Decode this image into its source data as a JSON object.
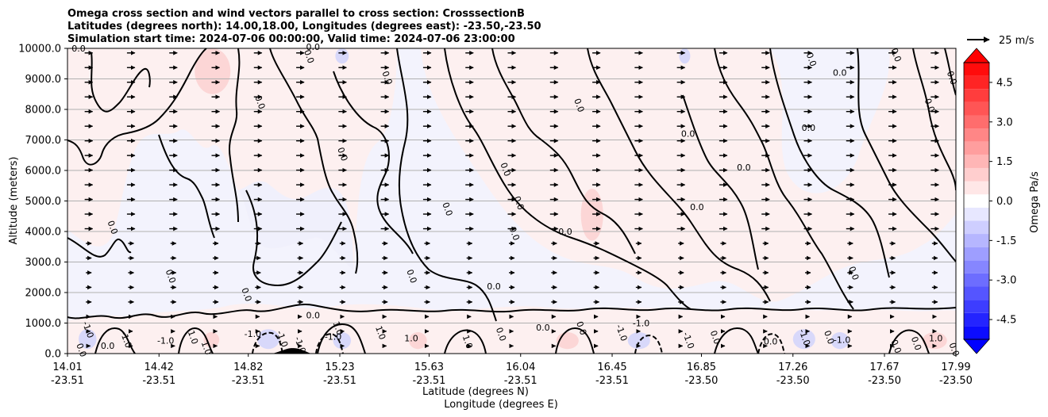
{
  "chart_data": {
    "type": "heatmap",
    "title": [
      "Omega cross section and wind vectors parallel to cross section: CrosssectionB",
      "Latitudes (degrees north): 14.00,18.00, Longitudes (degrees east): -23.50,-23.50",
      "Simulation start time: 2024-07-06 00:00:00, Valid time: 2024-07-06 23:00:00"
    ],
    "ylabel": "Altitude (meters)",
    "xlabel": [
      "Latitude (degrees N)",
      "Longitude (degrees E)"
    ],
    "ylim": [
      0,
      10000
    ],
    "yticks": [
      "0.0",
      "1000.0",
      "2000.0",
      "3000.0",
      "4000.0",
      "5000.0",
      "6000.0",
      "7000.0",
      "8000.0",
      "9000.0",
      "10000.0"
    ],
    "xlim": [
      14.01,
      17.99
    ],
    "xticks": [
      {
        "lat": "14.01",
        "lon": "-23.51",
        "x": 14.01
      },
      {
        "lat": "14.42",
        "lon": "-23.51",
        "x": 14.42
      },
      {
        "lat": "14.82",
        "lon": "-23.51",
        "x": 14.82
      },
      {
        "lat": "15.23",
        "lon": "-23.51",
        "x": 15.23
      },
      {
        "lat": "15.63",
        "lon": "-23.51",
        "x": 15.63
      },
      {
        "lat": "16.04",
        "lon": "-23.51",
        "x": 16.04
      },
      {
        "lat": "16.45",
        "lon": "-23.51",
        "x": 16.45
      },
      {
        "lat": "16.85",
        "lon": "-23.50",
        "x": 16.85
      },
      {
        "lat": "17.26",
        "lon": "-23.50",
        "x": 17.26
      },
      {
        "lat": "17.67",
        "lon": "-23.50",
        "x": 17.67
      },
      {
        "lat": "17.99",
        "lon": "-23.50",
        "x": 17.99
      }
    ],
    "grid": "horizontal",
    "colorbar": {
      "label": "Omega Pa/s",
      "range": [
        -5.25,
        5.25
      ],
      "ticks": [
        "-4.5",
        "-3.0",
        "-1.5",
        "0.0",
        "1.5",
        "3.0",
        "4.5"
      ],
      "extend": "both",
      "min_color": "#0000ff",
      "mid_color": "#ffffff",
      "max_color": "#ff0000"
    },
    "quiver_key": {
      "label": "25 m/s",
      "value": 25
    },
    "wind": {
      "direction": "parallel to cross section, toward increasing latitude"
    },
    "contour_labels": [
      {
        "text": "0.0",
        "x": 14.06,
        "y": 9900
      },
      {
        "text": "0.0",
        "x": 14.86,
        "y": 8200
      },
      {
        "text": "0.0",
        "x": 15.08,
        "y": 9700
      },
      {
        "text": "0.0",
        "x": 15.11,
        "y": 9950
      },
      {
        "text": "0.0",
        "x": 15.43,
        "y": 9000
      },
      {
        "text": "0.0",
        "x": 16.29,
        "y": 8100
      },
      {
        "text": "0.0",
        "x": 16.79,
        "y": 7100
      },
      {
        "text": "0.0",
        "x": 17.33,
        "y": 9600
      },
      {
        "text": "0.0",
        "x": 17.71,
        "y": 9750
      },
      {
        "text": "0.0",
        "x": 17.47,
        "y": 9100
      },
      {
        "text": "0.0",
        "x": 17.96,
        "y": 9000
      },
      {
        "text": "0.0",
        "x": 17.86,
        "y": 8100
      },
      {
        "text": "0.0",
        "x": 17.33,
        "y": 7300
      },
      {
        "text": "0.0",
        "x": 15.23,
        "y": 6500
      },
      {
        "text": "0.0",
        "x": 15.96,
        "y": 6000
      },
      {
        "text": "0.0",
        "x": 17.04,
        "y": 6000
      },
      {
        "text": "0.0",
        "x": 15.7,
        "y": 4700
      },
      {
        "text": "0.0",
        "x": 16.02,
        "y": 4900
      },
      {
        "text": "0.0",
        "x": 16.83,
        "y": 4700
      },
      {
        "text": "0.0",
        "x": 14.2,
        "y": 4100
      },
      {
        "text": "0.0",
        "x": 16.0,
        "y": 3900
      },
      {
        "text": "0.0",
        "x": 16.24,
        "y": 3900
      },
      {
        "text": "0.0",
        "x": 14.46,
        "y": 2500
      },
      {
        "text": "0.0",
        "x": 15.54,
        "y": 2500
      },
      {
        "text": "0.0",
        "x": 15.92,
        "y": 2100
      },
      {
        "text": "0.0",
        "x": 17.52,
        "y": 2600
      },
      {
        "text": "0.0",
        "x": 14.8,
        "y": 1900
      },
      {
        "text": "0.0",
        "x": 15.11,
        "y": 1150
      },
      {
        "text": "-1.0",
        "x": 14.09,
        "y": 750
      },
      {
        "text": "-1.0",
        "x": 14.26,
        "y": 430
      },
      {
        "text": "-1.0",
        "x": 14.45,
        "y": 320
      },
      {
        "text": "1.0",
        "x": 14.62,
        "y": 150
      },
      {
        "text": "1.0",
        "x": 14.56,
        "y": 500
      },
      {
        "text": "-1.0",
        "x": 14.84,
        "y": 550
      },
      {
        "text": "-1.0",
        "x": 14.96,
        "y": 450
      },
      {
        "text": "-1.0",
        "x": 15.04,
        "y": 250
      },
      {
        "text": "-1.0",
        "x": 15.2,
        "y": 450
      },
      {
        "text": "1.0",
        "x": 15.21,
        "y": 800
      },
      {
        "text": "1.0",
        "x": 15.4,
        "y": 650
      },
      {
        "text": "1.0",
        "x": 15.55,
        "y": 400
      },
      {
        "text": "1.0",
        "x": 15.79,
        "y": 350
      },
      {
        "text": "0.0",
        "x": 15.94,
        "y": 600
      },
      {
        "text": "0.0",
        "x": 16.14,
        "y": 750
      },
      {
        "text": "0.0",
        "x": 16.3,
        "y": 800
      },
      {
        "text": "-1.0",
        "x": 16.48,
        "y": 650
      },
      {
        "text": "-1.0",
        "x": 16.58,
        "y": 900
      },
      {
        "text": "-1.0",
        "x": 16.78,
        "y": 400
      },
      {
        "text": "0.0",
        "x": 16.9,
        "y": 500
      },
      {
        "text": "0.0",
        "x": 17.16,
        "y": 300
      },
      {
        "text": "-1.0",
        "x": 17.3,
        "y": 500
      },
      {
        "text": "0.0",
        "x": 17.41,
        "y": 500
      },
      {
        "text": "-1.0",
        "x": 17.48,
        "y": 350
      },
      {
        "text": "0.0",
        "x": 17.71,
        "y": 200
      },
      {
        "text": "0.0",
        "x": 17.8,
        "y": 300
      },
      {
        "text": "1.0",
        "x": 17.9,
        "y": 400
      },
      {
        "text": "0.0",
        "x": 17.97,
        "y": 100
      },
      {
        "text": "0.0",
        "x": 14.06,
        "y": 80
      },
      {
        "text": "0.0",
        "x": 14.19,
        "y": 150
      }
    ],
    "features": {
      "positive_patches": [
        {
          "x": [
            14.58,
            14.74
          ],
          "y": [
            8500,
            10000
          ]
        },
        {
          "x": [
            16.31,
            16.41
          ],
          "y": [
            3700,
            5400
          ]
        },
        {
          "x": [
            14.62,
            14.69
          ],
          "y": [
            200,
            700
          ]
        },
        {
          "x": [
            15.54,
            15.62
          ],
          "y": [
            150,
            700
          ]
        },
        {
          "x": [
            16.2,
            16.3
          ],
          "y": [
            150,
            700
          ]
        },
        {
          "x": [
            17.84,
            17.95
          ],
          "y": [
            150,
            700
          ]
        }
      ],
      "negative_patches": [
        {
          "x": [
            15.21,
            15.27
          ],
          "y": [
            9500,
            10000
          ]
        },
        {
          "x": [
            16.75,
            16.8
          ],
          "y": [
            9500,
            10000
          ]
        },
        {
          "x": [
            14.06,
            14.14
          ],
          "y": [
            150,
            800
          ]
        },
        {
          "x": [
            14.86,
            14.96
          ],
          "y": [
            150,
            800
          ]
        },
        {
          "x": [
            15.2,
            15.28
          ],
          "y": [
            150,
            700
          ]
        },
        {
          "x": [
            16.52,
            16.62
          ],
          "y": [
            150,
            700
          ]
        },
        {
          "x": [
            17.26,
            17.36
          ],
          "y": [
            150,
            800
          ]
        },
        {
          "x": [
            17.43,
            17.51
          ],
          "y": [
            150,
            700
          ]
        }
      ],
      "terrain": {
        "x": [
          14.93,
          15.1
        ],
        "peak_y": 180
      }
    }
  }
}
